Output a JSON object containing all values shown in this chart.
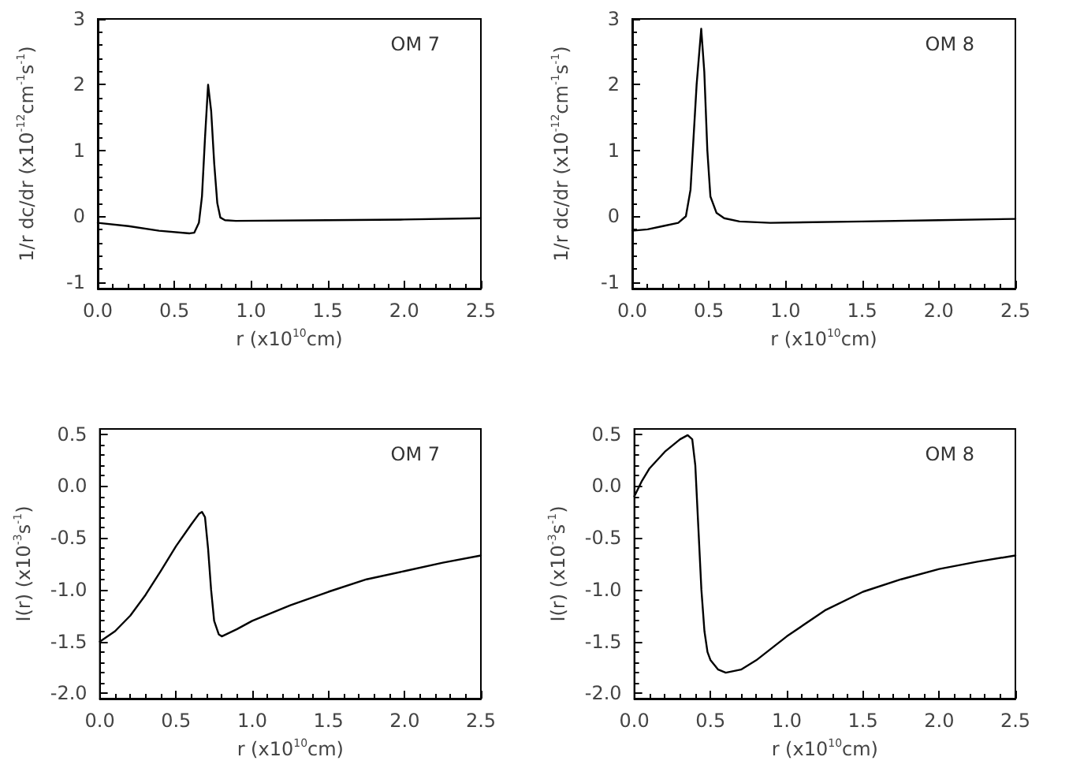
{
  "chart_data": [
    {
      "type": "line",
      "xlabel": "r (x10$^{10}$cm)",
      "ylabel": "1/r dc/dr (x10$^{-12}$cm$^{-1}$s$^{-1}$)",
      "annotations": [
        "OM 7"
      ],
      "marker": "none",
      "line_style": "solid",
      "xlim": [
        0,
        2.5
      ],
      "xticks": [
        {
          "value": 0,
          "label": "0.0"
        },
        {
          "value": 0.5,
          "label": "0.5"
        },
        {
          "value": 1,
          "label": "1.0"
        },
        {
          "value": 1.5,
          "label": "1.5"
        },
        {
          "value": 2,
          "label": "2.0"
        },
        {
          "value": 2.5,
          "label": "2.5"
        }
      ],
      "ylim": [
        -1.1,
        3
      ],
      "yticks": [
        -1,
        0,
        1,
        2,
        3
      ],
      "x": [
        0,
        0.2,
        0.4,
        0.6,
        0.63,
        0.66,
        0.68,
        0.7,
        0.72,
        0.74,
        0.76,
        0.78,
        0.8,
        0.83,
        0.9,
        1.5,
        2,
        2.5
      ],
      "series": [
        {
          "color": "#000000",
          "values": [
            -0.1,
            -0.15,
            -0.22,
            -0.26,
            -0.25,
            -0.1,
            0.3,
            1.2,
            2.0,
            1.6,
            0.8,
            0.2,
            -0.02,
            -0.06,
            -0.07,
            -0.06,
            -0.05,
            -0.03
          ]
        }
      ]
    },
    {
      "type": "line",
      "xlabel": "r (x10$^{10}$cm)",
      "ylabel": "1/r dc/dr (x10$^{-12}$cm$^{-1}$s$^{-1}$)",
      "annotations": [
        "OM 8"
      ],
      "marker": "none",
      "line_style": "solid",
      "xlim": [
        0,
        2.5
      ],
      "xticks": [
        {
          "value": 0,
          "label": "0.0"
        },
        {
          "value": 0.5,
          "label": "0.5"
        },
        {
          "value": 1,
          "label": "1.0"
        },
        {
          "value": 1.5,
          "label": "1.5"
        },
        {
          "value": 2,
          "label": "2.0"
        },
        {
          "value": 2.5,
          "label": "2.5"
        }
      ],
      "ylim": [
        -1.1,
        3
      ],
      "yticks": [
        -1,
        0,
        1,
        2,
        3
      ],
      "x": [
        0,
        0.1,
        0.2,
        0.3,
        0.35,
        0.38,
        0.4,
        0.42,
        0.45,
        0.47,
        0.49,
        0.51,
        0.55,
        0.6,
        0.7,
        0.9,
        1.5,
        2,
        2.5
      ],
      "series": [
        {
          "color": "#000000",
          "values": [
            -0.22,
            -0.2,
            -0.15,
            -0.1,
            0.0,
            0.4,
            1.2,
            2.0,
            2.85,
            2.2,
            1.0,
            0.3,
            0.05,
            -0.03,
            -0.08,
            -0.1,
            -0.08,
            -0.06,
            -0.04
          ]
        }
      ]
    },
    {
      "type": "line",
      "xlabel": "r (x10$^{10}$cm)",
      "ylabel": "I(r) (x10$^{-3}$s$^{-1}$)",
      "annotations": [
        "OM 7"
      ],
      "marker": "none",
      "line_style": "solid",
      "xlim": [
        0,
        2.5
      ],
      "xticks": [
        {
          "value": 0,
          "label": "0.0"
        },
        {
          "value": 0.5,
          "label": "0.5"
        },
        {
          "value": 1,
          "label": "1.0"
        },
        {
          "value": 1.5,
          "label": "1.5"
        },
        {
          "value": 2,
          "label": "2.0"
        },
        {
          "value": 2.5,
          "label": "2.5"
        }
      ],
      "ylim": [
        -2.05,
        0.55
      ],
      "yticks": [
        {
          "value": -2,
          "label": "-2.0"
        },
        {
          "value": -1.5,
          "label": "-1.5"
        },
        {
          "value": -1,
          "label": "-1.0"
        },
        {
          "value": -0.5,
          "label": "-0.5"
        },
        {
          "value": 0,
          "label": "0.0"
        },
        {
          "value": 0.5,
          "label": "0.5"
        }
      ],
      "x": [
        0,
        0.1,
        0.2,
        0.3,
        0.4,
        0.5,
        0.6,
        0.65,
        0.67,
        0.69,
        0.71,
        0.73,
        0.75,
        0.78,
        0.8,
        0.9,
        1,
        1.25,
        1.5,
        1.75,
        2,
        2.25,
        2.5
      ],
      "series": [
        {
          "color": "#000000",
          "values": [
            -1.5,
            -1.4,
            -1.25,
            -1.05,
            -0.82,
            -0.58,
            -0.37,
            -0.27,
            -0.25,
            -0.3,
            -0.6,
            -1.0,
            -1.3,
            -1.43,
            -1.45,
            -1.38,
            -1.3,
            -1.15,
            -1.02,
            -0.9,
            -0.82,
            -0.74,
            -0.67
          ]
        }
      ]
    },
    {
      "type": "line",
      "xlabel": "r (x10$^{10}$cm)",
      "ylabel": "I(r) (x10$^{-3}$s$^{-1}$)",
      "annotations": [
        "OM 8"
      ],
      "marker": "none",
      "line_style": "solid",
      "xlim": [
        0,
        2.5
      ],
      "xticks": [
        {
          "value": 0,
          "label": "0.0"
        },
        {
          "value": 0.5,
          "label": "0.5"
        },
        {
          "value": 1,
          "label": "1.0"
        },
        {
          "value": 1.5,
          "label": "1.5"
        },
        {
          "value": 2,
          "label": "2.0"
        },
        {
          "value": 2.5,
          "label": "2.5"
        }
      ],
      "ylim": [
        -2.05,
        0.55
      ],
      "yticks": [
        {
          "value": -2,
          "label": "-2.0"
        },
        {
          "value": -1.5,
          "label": "-1.5"
        },
        {
          "value": -1,
          "label": "-1.0"
        },
        {
          "value": -0.5,
          "label": "-0.5"
        },
        {
          "value": 0,
          "label": "0.0"
        },
        {
          "value": 0.5,
          "label": "0.5"
        }
      ],
      "x": [
        0,
        0.05,
        0.1,
        0.2,
        0.3,
        0.35,
        0.38,
        0.4,
        0.42,
        0.44,
        0.46,
        0.48,
        0.5,
        0.55,
        0.6,
        0.7,
        0.8,
        1,
        1.25,
        1.5,
        1.75,
        2,
        2.25,
        2.5
      ],
      "series": [
        {
          "color": "#000000",
          "values": [
            -0.1,
            0.05,
            0.17,
            0.33,
            0.45,
            0.49,
            0.45,
            0.2,
            -0.4,
            -1.0,
            -1.4,
            -1.6,
            -1.68,
            -1.77,
            -1.8,
            -1.77,
            -1.68,
            -1.45,
            -1.2,
            -1.02,
            -0.9,
            -0.8,
            -0.73,
            -0.67
          ]
        }
      ]
    }
  ]
}
